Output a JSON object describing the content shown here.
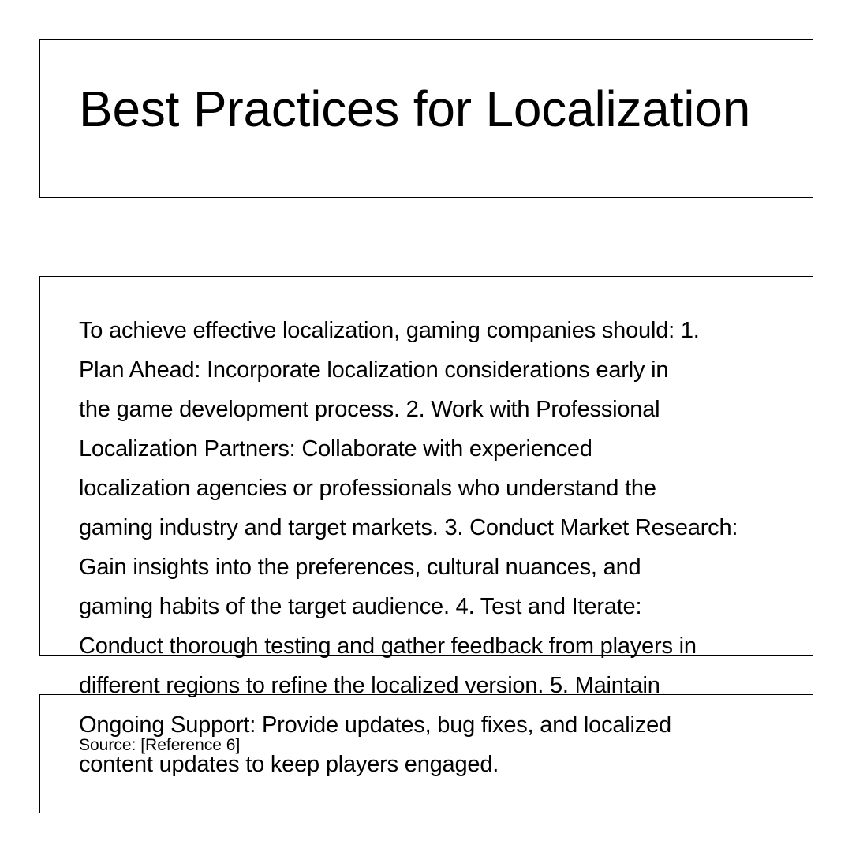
{
  "title": "Best Practices for Localization",
  "body_text": "To achieve effective localization, gaming companies should:  1.\nPlan Ahead: Incorporate localization considerations early in\nthe game development process. 2. Work with Professional\nLocalization Partners: Collaborate with experienced\nlocalization agencies or professionals who understand the\ngaming industry and target markets. 3. Conduct Market Research:\nGain insights into the preferences, cultural nuances, and\ngaming habits of the target audience. 4. Test and Iterate:\nConduct thorough testing and gather feedback from players in\ndifferent regions to refine the localized version. 5. Maintain\nOngoing Support: Provide updates, bug fixes, and localized\ncontent updates to keep players engaged.",
  "source": "Source: [Reference 6]"
}
